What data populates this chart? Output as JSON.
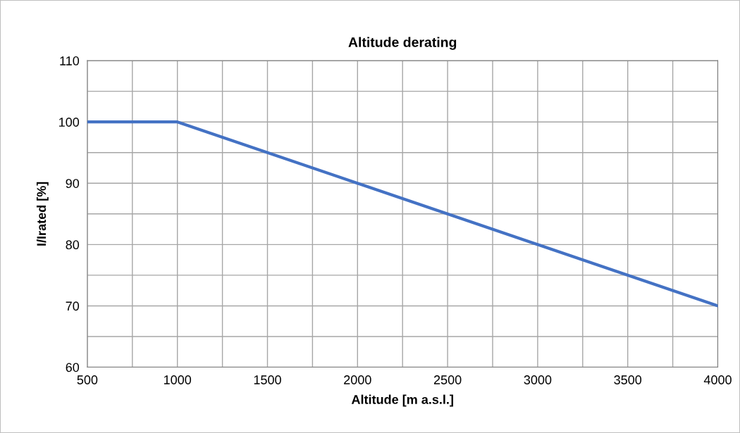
{
  "chart_data": {
    "type": "line",
    "title": "Altitude derating",
    "xlabel": "Altitude [m a.s.l.]",
    "ylabel": "I/Irated [%]",
    "x": [
      500,
      1000,
      4000
    ],
    "series": [
      {
        "color": "#4472c4",
        "values": [
          100,
          100,
          70
        ]
      }
    ],
    "xlim": [
      500,
      4000
    ],
    "xticks": [
      500,
      {
        "value": 750,
        "label": null
      },
      1000,
      {
        "value": 1250,
        "label": null
      },
      1500,
      {
        "value": 1750,
        "label": null
      },
      2000,
      {
        "value": 2250,
        "label": null
      },
      2500,
      {
        "value": 2750,
        "label": null
      },
      3000,
      {
        "value": 3250,
        "label": null
      },
      3500,
      {
        "value": 3750,
        "label": null
      },
      4000
    ],
    "ylim": [
      60,
      110
    ],
    "yticks": [
      60,
      {
        "value": 65,
        "label": null
      },
      70,
      {
        "value": 75,
        "label": null
      },
      80,
      {
        "value": 85,
        "label": null
      },
      90,
      {
        "value": 95,
        "label": null
      },
      100,
      {
        "value": 105,
        "label": null
      },
      110
    ],
    "grid": true,
    "marker": "none",
    "line_style": "solid"
  }
}
